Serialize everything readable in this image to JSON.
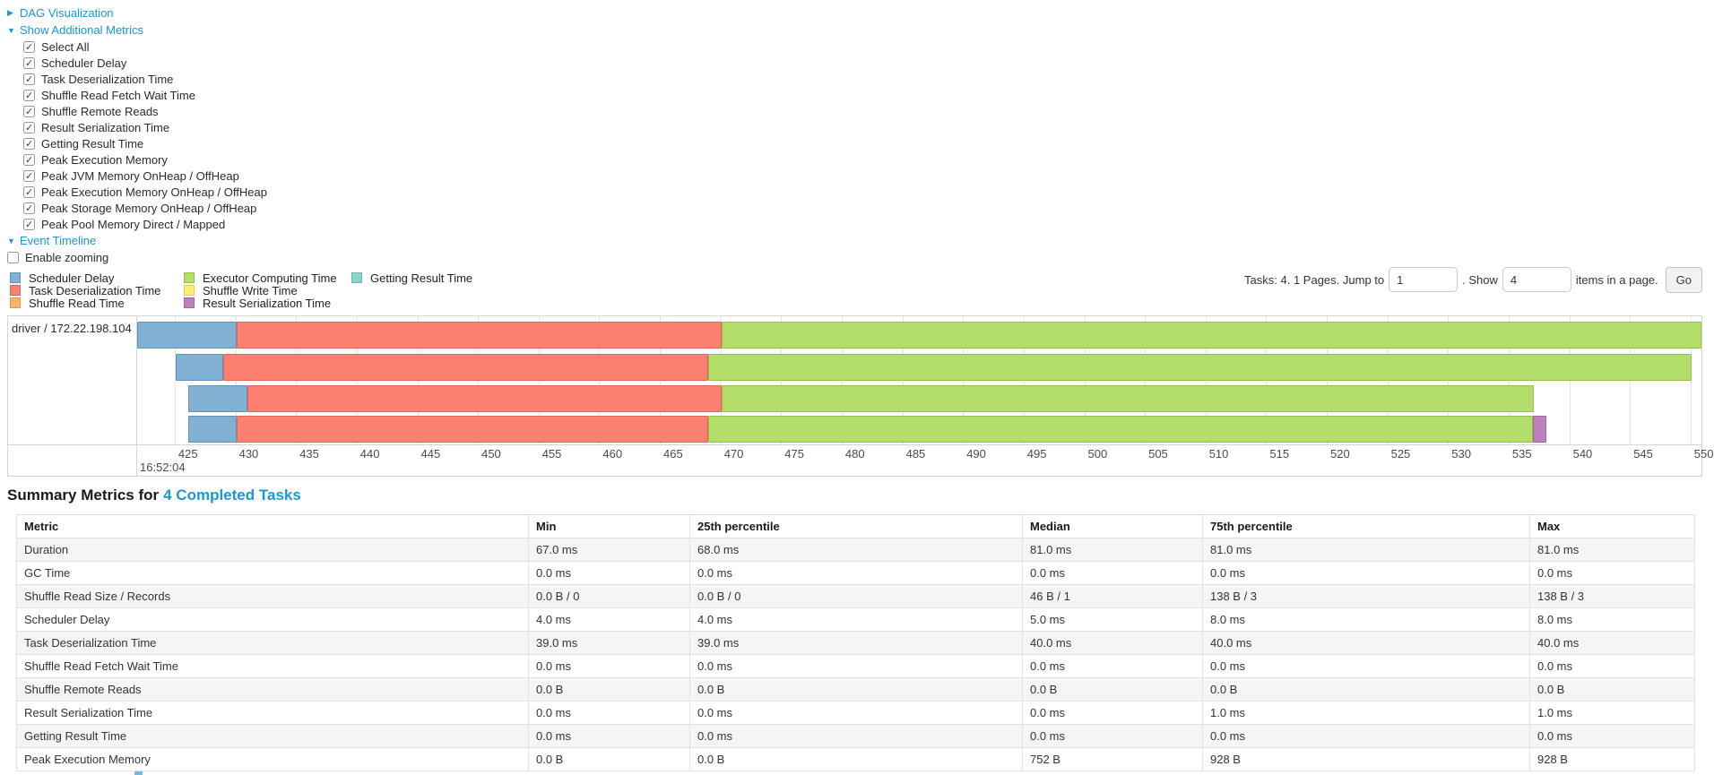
{
  "controls": {
    "dag": {
      "arrow": "▶",
      "label": "DAG Visualization"
    },
    "metrics_toggle": {
      "arrow": "▼",
      "label": "Show Additional Metrics"
    },
    "metrics": [
      {
        "label": "Select All",
        "checked": true
      },
      {
        "label": "Scheduler Delay",
        "checked": true
      },
      {
        "label": "Task Deserialization Time",
        "checked": true
      },
      {
        "label": "Shuffle Read Fetch Wait Time",
        "checked": true
      },
      {
        "label": "Shuffle Remote Reads",
        "checked": true
      },
      {
        "label": "Result Serialization Time",
        "checked": true
      },
      {
        "label": "Getting Result Time",
        "checked": true
      },
      {
        "label": "Peak Execution Memory",
        "checked": true
      },
      {
        "label": "Peak JVM Memory OnHeap / OffHeap",
        "checked": true
      },
      {
        "label": "Peak Execution Memory OnHeap / OffHeap",
        "checked": true
      },
      {
        "label": "Peak Storage Memory OnHeap / OffHeap",
        "checked": true
      },
      {
        "label": "Peak Pool Memory Direct / Mapped",
        "checked": true
      }
    ],
    "event_timeline_toggle": {
      "arrow": "▼",
      "label": "Event Timeline"
    },
    "enable_zooming": {
      "label": "Enable zooming",
      "checked": false
    }
  },
  "legend": {
    "columns": [
      [
        {
          "key": "scheduler_delay",
          "label": "Scheduler Delay"
        },
        {
          "key": "task_deserialization",
          "label": "Task Deserialization Time"
        },
        {
          "key": "shuffle_read",
          "label": "Shuffle Read Time"
        }
      ],
      [
        {
          "key": "executor_computing",
          "label": "Executor Computing Time"
        },
        {
          "key": "shuffle_write",
          "label": "Shuffle Write Time"
        },
        {
          "key": "result_serialization",
          "label": "Result Serialization Time"
        }
      ],
      [
        {
          "key": "getting_result",
          "label": "Getting Result Time"
        }
      ]
    ]
  },
  "pagination": {
    "prefix": "Tasks: 4. 1 Pages. Jump to",
    "jump_value": "1",
    "middle": ". Show",
    "show_value": "4",
    "suffix": "items in a page.",
    "go_label": "Go"
  },
  "chart_data": {
    "type": "timeline",
    "group_label": "driver / 172.22.198.104",
    "axis": {
      "min": 421.9,
      "max": 550.9,
      "ticks": [
        425,
        430,
        435,
        440,
        445,
        450,
        455,
        460,
        465,
        470,
        475,
        480,
        485,
        490,
        495,
        500,
        505,
        510,
        515,
        520,
        525,
        530,
        535,
        540,
        545,
        550
      ],
      "start_label": "16:52:04"
    },
    "colors": {
      "scheduler_delay": {
        "fill": "#80B1D3",
        "border": "#6293B5"
      },
      "task_deserialization": {
        "fill": "#FB8072",
        "border": "#DE675B"
      },
      "shuffle_read": {
        "fill": "#FDB462",
        "border": "#E2984B"
      },
      "executor_computing": {
        "fill": "#B3DE69",
        "border": "#94C14D"
      },
      "shuffle_write": {
        "fill": "#FFED6F",
        "border": "#E3D054"
      },
      "result_serialization": {
        "fill": "#BC80BD",
        "border": "#A164A3"
      },
      "getting_result": {
        "fill": "#8DD3C7",
        "border": "#6FB6AA"
      }
    },
    "tasks": [
      {
        "segments": [
          {
            "key": "scheduler_delay",
            "start": 421.9,
            "end": 430.1
          },
          {
            "key": "task_deserialization",
            "start": 430.1,
            "end": 470.1
          },
          {
            "key": "executor_computing",
            "start": 470.1,
            "end": 550.9
          }
        ]
      },
      {
        "segments": [
          {
            "key": "scheduler_delay",
            "start": 425.1,
            "end": 429.0
          },
          {
            "key": "task_deserialization",
            "start": 429.0,
            "end": 469.0
          },
          {
            "key": "executor_computing",
            "start": 469.0,
            "end": 550.1
          }
        ]
      },
      {
        "segments": [
          {
            "key": "scheduler_delay",
            "start": 426.1,
            "end": 431.0
          },
          {
            "key": "task_deserialization",
            "start": 431.0,
            "end": 470.1
          },
          {
            "key": "executor_computing",
            "start": 470.1,
            "end": 537.1
          }
        ]
      },
      {
        "segments": [
          {
            "key": "scheduler_delay",
            "start": 426.1,
            "end": 430.1
          },
          {
            "key": "task_deserialization",
            "start": 430.1,
            "end": 469.0
          },
          {
            "key": "executor_computing",
            "start": 469.0,
            "end": 537.0
          },
          {
            "key": "result_serialization",
            "start": 537.0,
            "end": 538.1
          }
        ]
      }
    ]
  },
  "summary": {
    "heading_prefix": "Summary Metrics for",
    "heading_link": "4 Completed Tasks",
    "columns": [
      "Metric",
      "Min",
      "25th percentile",
      "Median",
      "75th percentile",
      "Max"
    ],
    "rows": [
      {
        "metric": "Duration",
        "values": [
          "67.0 ms",
          "68.0 ms",
          "81.0 ms",
          "81.0 ms",
          "81.0 ms"
        ]
      },
      {
        "metric": "GC Time",
        "values": [
          "0.0 ms",
          "0.0 ms",
          "0.0 ms",
          "0.0 ms",
          "0.0 ms"
        ]
      },
      {
        "metric": "Shuffle Read Size / Records",
        "values": [
          "0.0 B / 0",
          "0.0 B / 0",
          "46 B / 1",
          "138 B / 3",
          "138 B / 3"
        ]
      },
      {
        "metric": "Scheduler Delay",
        "values": [
          "4.0 ms",
          "4.0 ms",
          "5.0 ms",
          "8.0 ms",
          "8.0 ms"
        ]
      },
      {
        "metric": "Task Deserialization Time",
        "values": [
          "39.0 ms",
          "39.0 ms",
          "40.0 ms",
          "40.0 ms",
          "40.0 ms"
        ]
      },
      {
        "metric": "Shuffle Read Fetch Wait Time",
        "values": [
          "0.0 ms",
          "0.0 ms",
          "0.0 ms",
          "0.0 ms",
          "0.0 ms"
        ]
      },
      {
        "metric": "Shuffle Remote Reads",
        "values": [
          "0.0 B",
          "0.0 B",
          "0.0 B",
          "0.0 B",
          "0.0 B"
        ]
      },
      {
        "metric": "Result Serialization Time",
        "values": [
          "0.0 ms",
          "0.0 ms",
          "0.0 ms",
          "1.0 ms",
          "1.0 ms"
        ]
      },
      {
        "metric": "Getting Result Time",
        "values": [
          "0.0 ms",
          "0.0 ms",
          "0.0 ms",
          "0.0 ms",
          "0.0 ms"
        ]
      },
      {
        "metric": "Peak Execution Memory",
        "values": [
          "0.0 B",
          "0.0 B",
          "752 B",
          "928 B",
          "928 B"
        ]
      }
    ]
  }
}
